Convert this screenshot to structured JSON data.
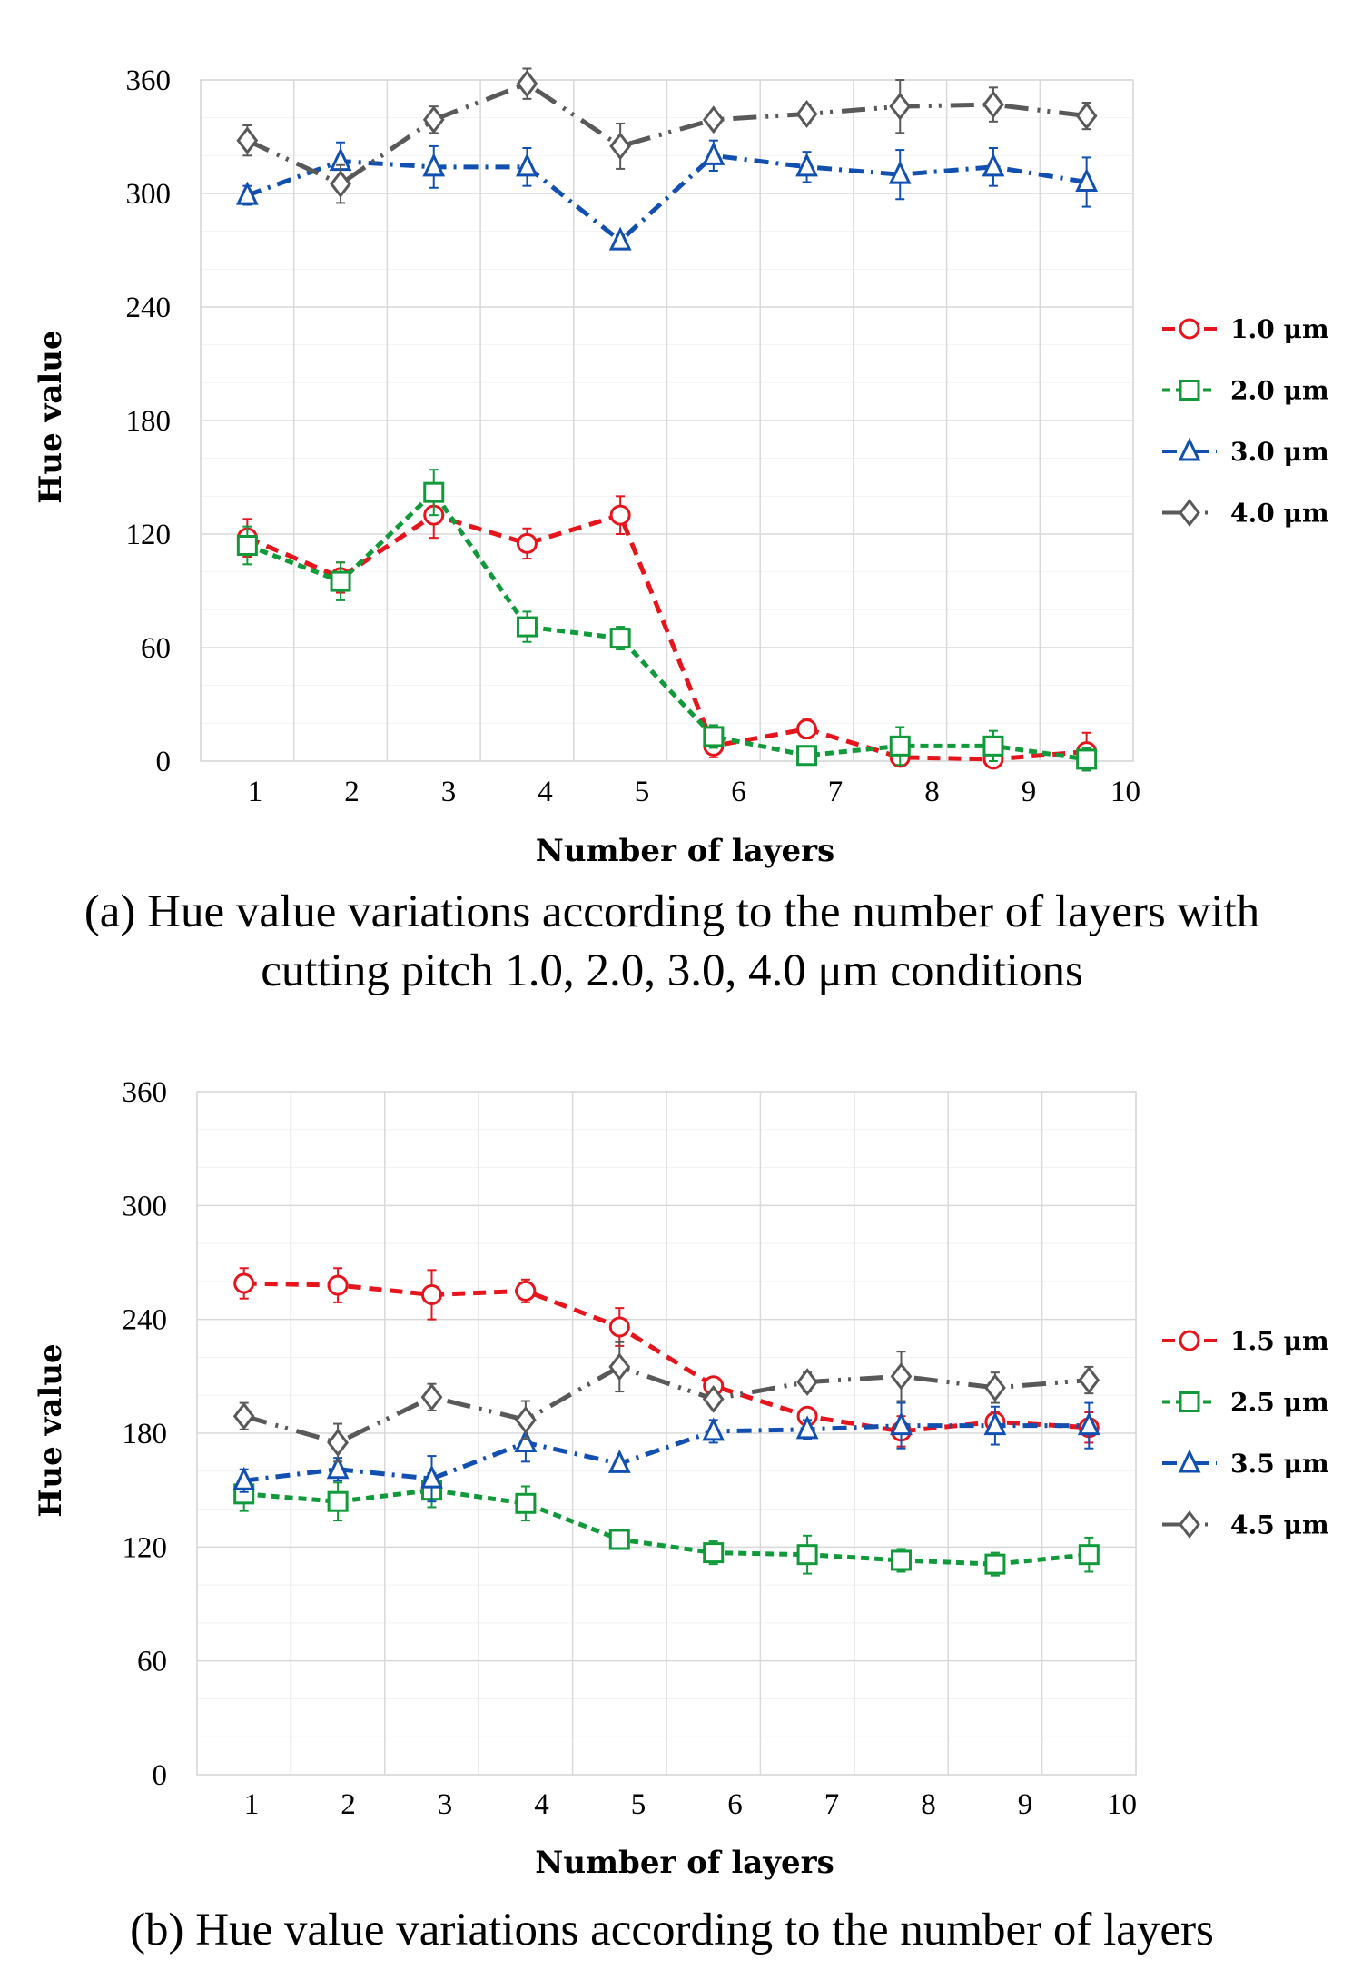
{
  "chart_data": [
    {
      "type": "line",
      "panel": "a",
      "ylabel": "Hue value",
      "xlabel": "Number of layers",
      "ylim": [
        0,
        360
      ],
      "yticks": [
        "0",
        "60",
        "120",
        "180",
        "240",
        "300",
        "360"
      ],
      "categories": [
        "1",
        "2",
        "3",
        "4",
        "5",
        "6",
        "7",
        "8",
        "9",
        "10"
      ],
      "grid": true,
      "legend_position": "right",
      "caption": [
        "(a) Hue value variations according to the number of layers with",
        "cutting pitch 1.0, 2.0, 3.0, 4.0 μm conditions"
      ],
      "series": [
        {
          "name": "1.0 μm",
          "color": "#e8141c",
          "marker": "circle",
          "values": [
            118,
            97,
            130,
            115,
            130,
            8,
            17,
            2,
            1,
            5
          ],
          "errors": [
            10,
            8,
            12,
            8,
            10,
            6,
            5,
            3,
            2,
            10
          ]
        },
        {
          "name": "2.0 μm",
          "color": "#119a3a",
          "marker": "square",
          "values": [
            114,
            95,
            142,
            71,
            65,
            13,
            3,
            8,
            8,
            1
          ],
          "errors": [
            10,
            10,
            12,
            8,
            6,
            6,
            3,
            10,
            8,
            6
          ]
        },
        {
          "name": "3.0 μm",
          "color": "#1150b0",
          "marker": "triangle",
          "values": [
            299,
            317,
            314,
            314,
            275,
            320,
            314,
            310,
            314,
            306
          ],
          "errors": [
            5,
            10,
            11,
            10,
            3,
            8,
            8,
            13,
            10,
            13
          ]
        },
        {
          "name": "4.0 μm",
          "color": "#595959",
          "marker": "diamond",
          "values": [
            328,
            305,
            339,
            358,
            325,
            339,
            342,
            346,
            347,
            341
          ],
          "errors": [
            8,
            10,
            7,
            8,
            12,
            3,
            5,
            14,
            9,
            7
          ]
        }
      ]
    },
    {
      "type": "line",
      "panel": "b",
      "ylabel": "Hue value",
      "xlabel": "Number of layers",
      "ylim": [
        0,
        360
      ],
      "yticks": [
        "0",
        "60",
        "120",
        "180",
        "240",
        "300",
        "360"
      ],
      "categories": [
        "1",
        "2",
        "3",
        "4",
        "5",
        "6",
        "7",
        "8",
        "9",
        "10"
      ],
      "grid": true,
      "legend_position": "right",
      "caption": [
        "(b) Hue value variations according to the number of layers"
      ],
      "series": [
        {
          "name": "1.5 μm",
          "color": "#e8141c",
          "marker": "circle",
          "values": [
            259,
            258,
            253,
            255,
            236,
            205,
            189,
            181,
            186,
            183
          ],
          "errors": [
            8,
            9,
            13,
            6,
            10,
            4,
            4,
            8,
            5,
            8
          ]
        },
        {
          "name": "2.5 μm",
          "color": "#119a3a",
          "marker": "square",
          "values": [
            148,
            144,
            150,
            143,
            124,
            117,
            116,
            113,
            111,
            116
          ],
          "errors": [
            9,
            10,
            9,
            9,
            5,
            6,
            10,
            6,
            6,
            9
          ]
        },
        {
          "name": "3.5 μm",
          "color": "#1150b0",
          "marker": "triangle",
          "values": [
            155,
            161,
            156,
            175,
            164,
            181,
            182,
            184,
            184,
            184
          ],
          "errors": [
            6,
            6,
            12,
            10,
            2,
            6,
            5,
            12,
            10,
            12
          ]
        },
        {
          "name": "4.5 μm",
          "color": "#595959",
          "marker": "diamond",
          "values": [
            189,
            175,
            199,
            187,
            215,
            198,
            207,
            210,
            204,
            208
          ],
          "errors": [
            7,
            10,
            7,
            10,
            13,
            3,
            5,
            13,
            8,
            7
          ]
        }
      ]
    }
  ]
}
